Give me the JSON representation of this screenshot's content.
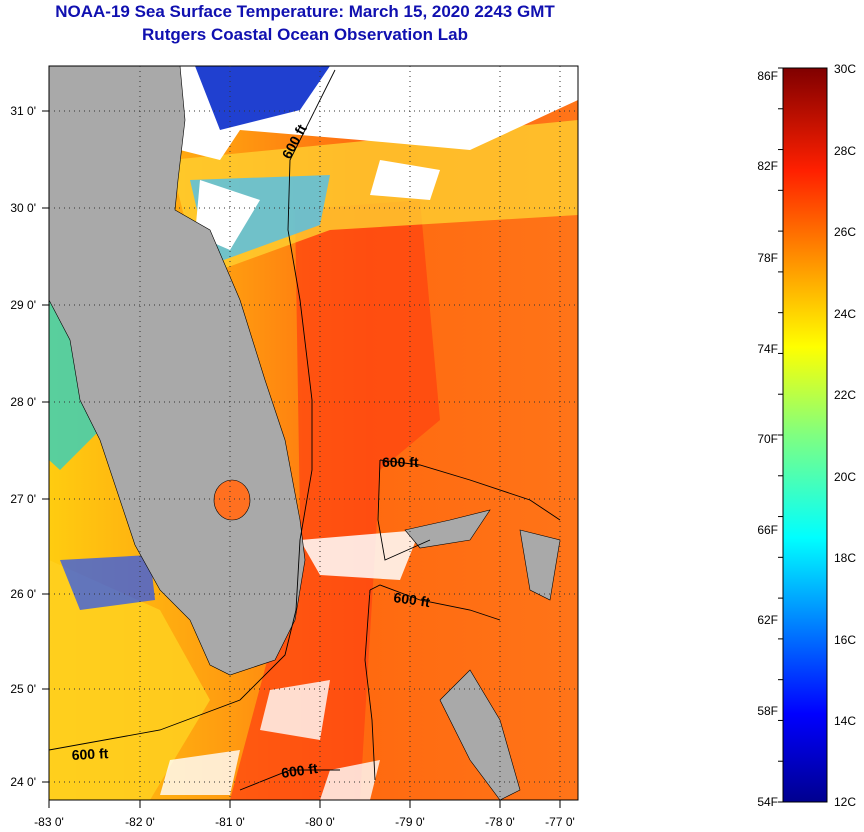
{
  "header": {
    "title": "NOAA-19 Sea Surface Temperature:  March 15, 2020 2243 GMT",
    "subtitle": "Rutgers Coastal Ocean Observation Lab"
  },
  "map": {
    "lat_labels": [
      "31 0'",
      "30 0'",
      "29 0'",
      "28 0'",
      "27 0'",
      "26 0'",
      "25 0'",
      "24 0'"
    ],
    "lon_labels": [
      "-83 0'",
      "-82 0'",
      "-81 0'",
      "-80 0'",
      "-79 0'",
      "-78 0'",
      "-77 0'"
    ],
    "contour_labels": [
      "600 ft",
      "600 ft",
      "600 ft",
      "600 ft",
      "600 ft"
    ],
    "colors": {
      "land": "#a9a9a9",
      "cloud": "#ffffff",
      "contour": "#000000"
    }
  },
  "colorbar": {
    "f_labels": [
      "86F",
      "82F",
      "78F",
      "74F",
      "70F",
      "66F",
      "62F",
      "58F",
      "54F"
    ],
    "c_labels": [
      "30C",
      "28C",
      "26C",
      "24C",
      "22C",
      "20C",
      "18C",
      "16C",
      "14C",
      "12C"
    ]
  }
}
